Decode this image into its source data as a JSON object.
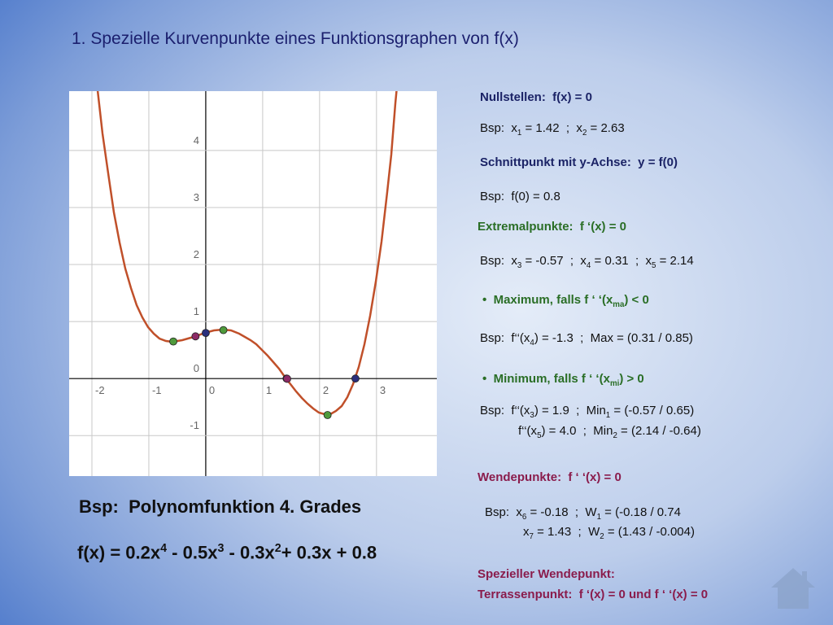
{
  "title": "1. Spezielle Kurvenpunkte eines Funktionsgraphen von f(x)",
  "graph": {
    "xlim": [
      -2.4,
      4.06
    ],
    "ylim": [
      -1.71,
      5.04
    ],
    "xticks": [
      -2,
      -1,
      0,
      1,
      2,
      3
    ],
    "yticks": [
      -1,
      0,
      1,
      2,
      3,
      4
    ],
    "grid": true,
    "points": [
      {
        "x": -0.57,
        "y": 0.65,
        "color": "#4f9a3c"
      },
      {
        "x": -0.18,
        "y": 0.74,
        "color": "#8c2a66"
      },
      {
        "x": 0,
        "y": 0.8,
        "color": "#2b2f7c"
      },
      {
        "x": 0.31,
        "y": 0.85,
        "color": "#4f9a3c"
      },
      {
        "x": 1.42,
        "y": 0,
        "color": "#2b2f7c"
      },
      {
        "x": 1.43,
        "y": -0.004,
        "color": "#8c2a66"
      },
      {
        "x": 2.14,
        "y": -0.64,
        "color": "#4f9a3c"
      },
      {
        "x": 2.63,
        "y": 0,
        "color": "#2b2f7c"
      }
    ]
  },
  "left": [
    {
      "parts": [
        "Bsp:  Polynomfunktion 4. Grades"
      ]
    },
    {
      "parts": [
        "f(x) = 0.2x",
        {
          "sup": "4"
        },
        " - 0.5x",
        {
          "sup": "3"
        },
        " - 0.3x",
        {
          "sup": "2"
        },
        "+ 0.3x + 0.8"
      ]
    }
  ],
  "right": [
    {
      "parts": [
        "Nullstellen:  f(x) = 0"
      ]
    },
    {
      "parts": [
        "Bsp:  x",
        {
          "sub": "1"
        },
        " = 1.42  ;  x",
        {
          "sub": "2"
        },
        " = 2.63"
      ]
    },
    {
      "parts": [
        "Schnittpunkt mit y-Achse:  y = f(0)"
      ]
    },
    {
      "parts": [
        "Bsp:  f(0) = 0.8"
      ]
    },
    {
      "parts": [
        "Extremalpunkte:  f ‘(x) = 0"
      ]
    },
    {
      "parts": [
        "Bsp:  x",
        {
          "sub": "3"
        },
        " = -0.57  ;  x",
        {
          "sub": "4"
        },
        " = 0.31  ;  x",
        {
          "sub": "5"
        },
        " = 2.14"
      ]
    },
    {
      "parts": [
        "•  Maximum, falls f ‘ ‘(x",
        {
          "sub": "ma"
        },
        ") < 0"
      ]
    },
    {
      "parts": [
        "Bsp:  f‘‘(x",
        {
          "sub": "4"
        },
        ") = -1.3  ;  Max = (0.31 / 0.85)"
      ]
    },
    {
      "parts": [
        "•  Minimum, falls f ‘ ‘(x",
        {
          "sub": "mi"
        },
        ") > 0"
      ]
    },
    {
      "parts": [
        "Bsp:  f‘‘(x",
        {
          "sub": "3"
        },
        ") = 1.9  ;  Min",
        {
          "sub": "1"
        },
        " = (-0.57 / 0.65)"
      ]
    },
    {
      "parts": [
        "f‘‘(x",
        {
          "sub": "5"
        },
        ") = 4.0  ;  Min",
        {
          "sub": "2"
        },
        " = (2.14 / -0.64)"
      ]
    },
    {
      "parts": [
        "Wendepunkte:  f ‘ ‘(x) = 0"
      ]
    },
    {
      "parts": [
        "Bsp:  x",
        {
          "sub": "6"
        },
        " = -0.18  ;  W",
        {
          "sub": "1"
        },
        " = (-0.18 / 0.74"
      ]
    },
    {
      "parts": [
        "x",
        {
          "sub": "7"
        },
        " = 1.43  ;  W",
        {
          "sub": "2"
        },
        " = (1.43 / -0.004)"
      ]
    },
    {
      "parts": [
        "Spezieller Wendepunkt:"
      ]
    },
    {
      "parts": [
        "Terrassenpunkt:  f ‘(x) = 0 und f ‘ ‘(x) = 0"
      ]
    }
  ]
}
